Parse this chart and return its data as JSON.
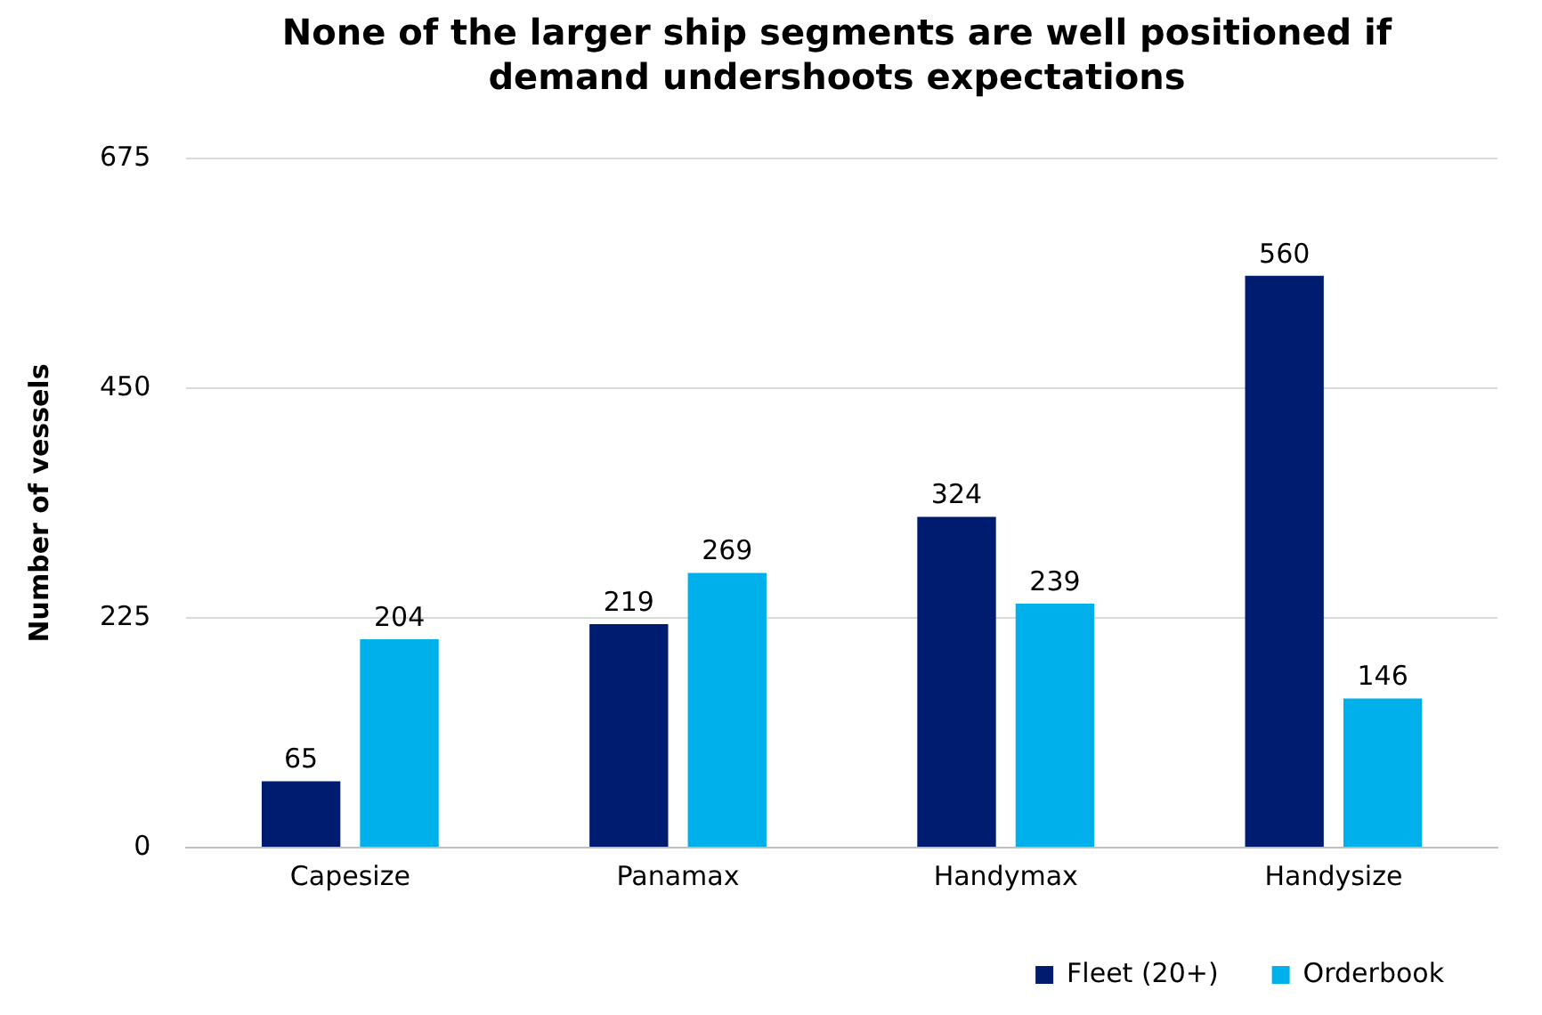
{
  "chart_data": {
    "type": "bar",
    "title": "None of the larger ship segments are well positioned if demand undershoots expectations",
    "ylabel": "Number of vessels",
    "categories": [
      "Capesize",
      "Panamax",
      "Handymax",
      "Handysize"
    ],
    "series": [
      {
        "name": "Fleet (20+)",
        "color": "#001c71",
        "values": [
          65,
          219,
          324,
          560
        ]
      },
      {
        "name": "Orderbook",
        "color": "#00b0ea",
        "values": [
          204,
          269,
          239,
          146
        ]
      }
    ],
    "ylim": [
      0,
      675
    ],
    "yticks": [
      0,
      225,
      450,
      675
    ],
    "grid": "y",
    "legend": "bottom right",
    "data_labels": true
  }
}
